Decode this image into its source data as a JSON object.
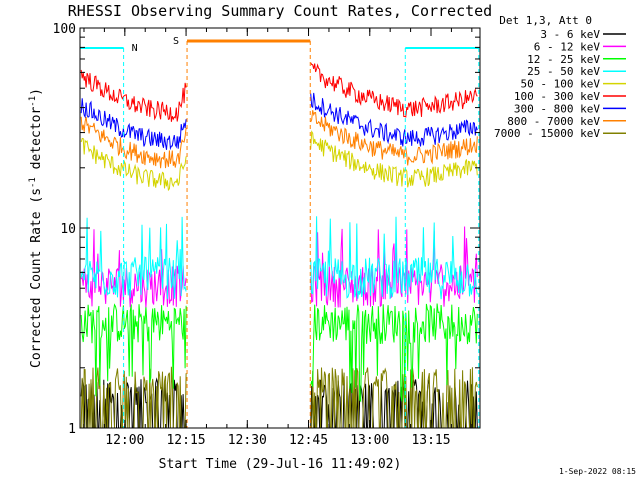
{
  "chart_data": {
    "type": "line",
    "title": "RHESSI Observing Summary Count Rates, Corrected",
    "xlabel": "Start Time (29-Jul-16 11:49:02)",
    "ylabel": "Corrected Count Rate (s",
    "ylabel_exp": "-1",
    "ylabel_mid": " detector",
    "ylabel_tail": ")",
    "ylim": [
      1,
      100
    ],
    "yscale": "log",
    "xlim": [
      11.817,
      13.45
    ],
    "yticks": [
      {
        "value": 1,
        "label": "1"
      },
      {
        "value": 10,
        "label": "10"
      },
      {
        "value": 100,
        "label": "100"
      }
    ],
    "xticks": [
      {
        "value": 12.0,
        "label": "12:00"
      },
      {
        "value": 12.25,
        "label": "12:15"
      },
      {
        "value": 12.5,
        "label": "12:30"
      },
      {
        "value": 12.75,
        "label": "12:45"
      },
      {
        "value": 13.0,
        "label": "13:00"
      },
      {
        "value": 13.25,
        "label": "13:15"
      }
    ],
    "legend_header": "Det 1,3, Att 0",
    "legend_position": "top-right",
    "series": [
      {
        "name": "3 - 6 keV",
        "color": "#000000",
        "approx_level": 1.3
      },
      {
        "name": "6 - 12 keV",
        "color": "#ff00ff",
        "approx_level": 5.0
      },
      {
        "name": "12 - 25 keV",
        "color": "#00ff00",
        "approx_level": 3.5
      },
      {
        "name": "25 - 50 keV",
        "color": "#00ffff",
        "approx_level": 5.5
      },
      {
        "name": "50 - 100 keV",
        "color": "#d4d400",
        "approx_level": 17
      },
      {
        "name": "100 - 300 keV",
        "color": "#ff0000",
        "approx_level": 38
      },
      {
        "name": "300 - 800 keV",
        "color": "#0000ff",
        "approx_level": 27
      },
      {
        "name": "800 - 7000 keV",
        "color": "#ff8000",
        "approx_level": 22
      },
      {
        "name": "7000 - 15000 keV",
        "color": "#808000",
        "approx_level": 1.5
      }
    ],
    "data_gaps": [
      [
        12.254,
        12.757
      ]
    ],
    "annotations": {
      "night_label": "N",
      "saa_label": "S",
      "night_intervals": [
        [
          11.817,
          11.995
        ],
        [
          13.145,
          13.445
        ]
      ],
      "saa_intervals": [
        [
          12.254,
          12.757
        ]
      ],
      "night_color": "#00ffff",
      "saa_color": "#ff8000"
    }
  },
  "footer": {
    "date": "1-Sep-2022 08:15"
  }
}
